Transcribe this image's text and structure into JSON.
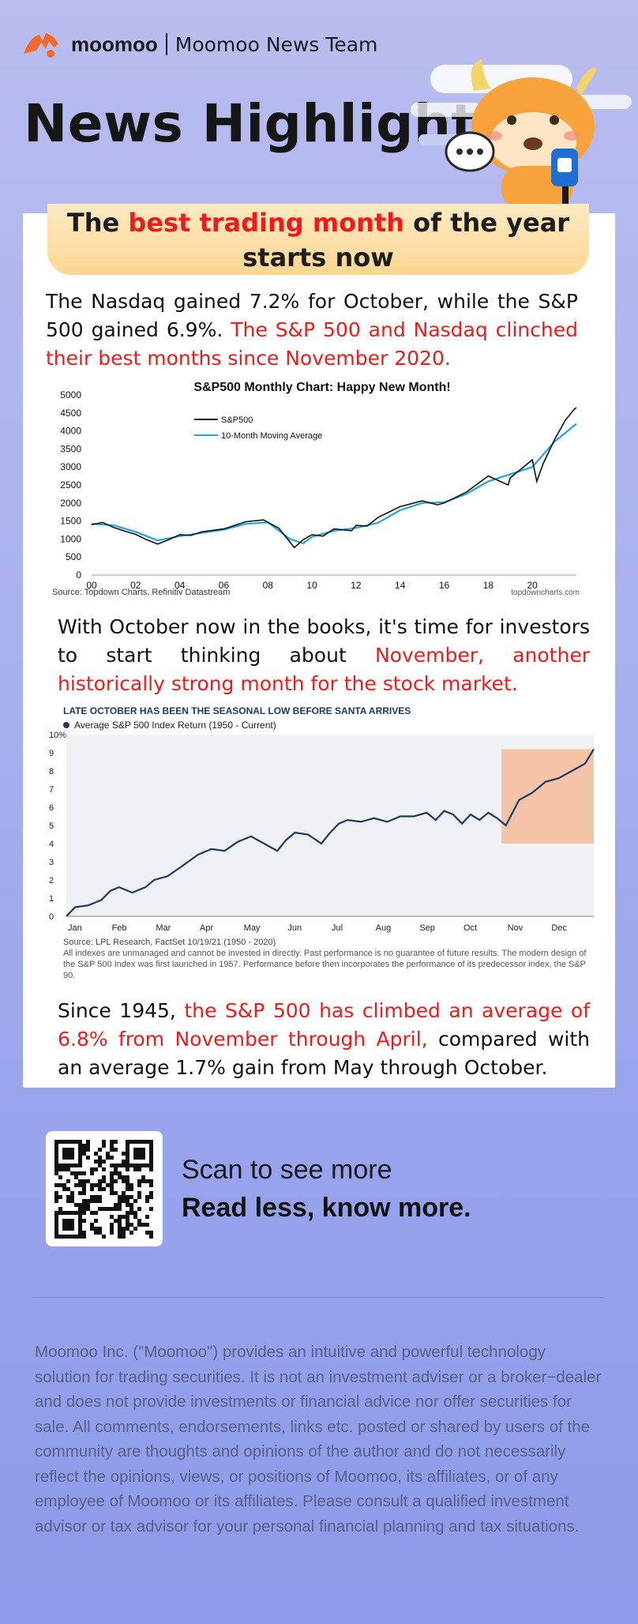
{
  "brand": {
    "name": "moomoo",
    "team": "Moomoo News Team"
  },
  "title": "News Highlights",
  "headline": {
    "part1": "The ",
    "highlight": "best trading month",
    "part2": " of the year starts now"
  },
  "para1": {
    "plain": "The Nasdaq gained 7.2% for October, while the S&P 500 gained 6.9%. ",
    "red": "The S&P 500 and Nasdaq clinched their best months since November 2020."
  },
  "para2": {
    "plain": "With October now in the books, it's time for investors to start thinking about ",
    "red": "November, another historically strong month for the stock market."
  },
  "para3": {
    "plain1": "Since 1945, ",
    "red": "the S&P 500 has climbed an average of 6.8% from November through April,",
    "plain2": " compared with an average 1.7% gain from May through October."
  },
  "scan": {
    "line1": "Scan to see more",
    "line2": "Read less, know more."
  },
  "disclaimer": "Moomoo Inc. (\"Moomoo\") provides an intuitive and powerful technology solution for trading securities. It is not an investment adviser or a broker−dealer and does not provide investments or financial advice nor offer securities for sale. All comments, endorsements, links etc. posted or shared by users of the community are thoughts and opinions of the author and do not necessarily reflect the opinions, views, or positions of Moomoo, its affiliates, or of any employee of Moomoo or its affiliates. Please consult a qualified investment advisor or tax advisor for your personal financial planning and tax situations.",
  "colors": {
    "accent_red": "#ef1b1b",
    "sp500_line": "#111111",
    "ma_line": "#1fa6dc",
    "ret_line": "#1e3a64",
    "highlight_box": "#f5c4a6"
  },
  "chart_data": [
    {
      "type": "line",
      "title": "S&P500 Monthly Chart: Happy New Month!",
      "source": "Source: Topdown Charts, Refinitiv Datastream",
      "credit": "topdowncharts.com",
      "xticks": [
        "00",
        "02",
        "04",
        "06",
        "08",
        "10",
        "12",
        "14",
        "16",
        "18",
        "20"
      ],
      "yticks": [
        0,
        500,
        1000,
        1500,
        2000,
        2500,
        3000,
        3500,
        4000,
        4500,
        5000
      ],
      "ylim": [
        0,
        5000
      ],
      "xlim": [
        2000,
        2022
      ],
      "legend": [
        "S&P500",
        "10-Month Moving Average"
      ],
      "series": [
        {
          "name": "S&P500",
          "x": [
            2000,
            2000.5,
            2001,
            2001.5,
            2002,
            2002.5,
            2003,
            2003.5,
            2004,
            2004.5,
            2005,
            2006,
            2007,
            2007.8,
            2008.5,
            2009.2,
            2009.6,
            2010,
            2010.5,
            2011,
            2011.8,
            2012,
            2012.5,
            2013,
            2014,
            2015,
            2015.7,
            2016,
            2016.5,
            2017,
            2018,
            2018.9,
            2019,
            2019.5,
            2020,
            2020.2,
            2020.5,
            2021,
            2021.5,
            2021.9,
            2022
          ],
          "values": [
            1400,
            1460,
            1320,
            1220,
            1130,
            980,
            860,
            980,
            1120,
            1100,
            1200,
            1280,
            1480,
            1530,
            1300,
            760,
            980,
            1120,
            1080,
            1280,
            1230,
            1380,
            1360,
            1600,
            1900,
            2060,
            1950,
            2000,
            2150,
            2300,
            2750,
            2500,
            2700,
            2950,
            3200,
            2600,
            3100,
            3750,
            4300,
            4600,
            4650
          ]
        },
        {
          "name": "10-Month Moving Average",
          "x": [
            2000,
            2001,
            2002,
            2003,
            2004,
            2005,
            2006,
            2007,
            2008,
            2009,
            2009.6,
            2010,
            2011,
            2012,
            2013,
            2014,
            2015,
            2016,
            2017,
            2018,
            2019,
            2020,
            2021,
            2022
          ],
          "values": [
            1420,
            1380,
            1200,
            960,
            1080,
            1170,
            1260,
            1420,
            1460,
            1000,
            880,
            1060,
            1230,
            1310,
            1450,
            1800,
            2000,
            2020,
            2250,
            2600,
            2800,
            3000,
            3700,
            4200
          ]
        }
      ]
    },
    {
      "type": "line",
      "title": "LATE OCTOBER HAS BEEN THE SEASONAL LOW BEFORE SANTA ARRIVES",
      "legend": "Average S&P 500 Index Return (1950 - Current)",
      "xticks": [
        "Jan",
        "Feb",
        "Mar",
        "Apr",
        "May",
        "Jun",
        "Jul",
        "Aug",
        "Sep",
        "Oct",
        "Nov",
        "Dec"
      ],
      "yticks": [
        "0",
        "1",
        "2",
        "3",
        "4",
        "5",
        "6",
        "7",
        "8",
        "9",
        "10%"
      ],
      "ylim": [
        0,
        10
      ],
      "highlight": "late Oct – Dec",
      "series": [
        {
          "name": "Average S&P 500 Index Return (1950 - Current)",
          "x": [
            0,
            0.2,
            0.5,
            0.8,
            1,
            1.2,
            1.5,
            1.8,
            2,
            2.3,
            2.6,
            3,
            3.3,
            3.6,
            3.9,
            4.2,
            4.5,
            4.8,
            5,
            5.2,
            5.5,
            5.8,
            6,
            6.2,
            6.4,
            6.7,
            7,
            7.3,
            7.6,
            7.9,
            8.2,
            8.4,
            8.6,
            8.8,
            9,
            9.2,
            9.4,
            9.6,
            9.8,
            10,
            10.3,
            10.6,
            10.9,
            11.2,
            11.5,
            11.8,
            12
          ],
          "values": [
            0,
            0.5,
            0.6,
            0.9,
            1.4,
            1.6,
            1.3,
            1.6,
            2,
            2.2,
            2.7,
            3.4,
            3.7,
            3.6,
            4.1,
            4.4,
            4.0,
            3.6,
            4.2,
            4.6,
            4.5,
            4.0,
            4.6,
            5.1,
            5.3,
            5.2,
            5.4,
            5.2,
            5.5,
            5.5,
            5.7,
            5.3,
            5.8,
            5.6,
            5.1,
            5.6,
            5.3,
            5.7,
            5.4,
            5.0,
            6.4,
            6.8,
            7.4,
            7.6,
            8.0,
            8.4,
            9.2
          ]
        }
      ],
      "source": "Source: LPL Research, FactSet  10/19/21 (1950 - 2020)",
      "note": "All indexes are unmanaged and cannot be invested in directly. Past performance is no guarantee of future results. The modern design of the S&P 500 Index was first launched in 1957. Performance before then incorporates the performance of its  predecessor index, the S&P 90."
    }
  ]
}
